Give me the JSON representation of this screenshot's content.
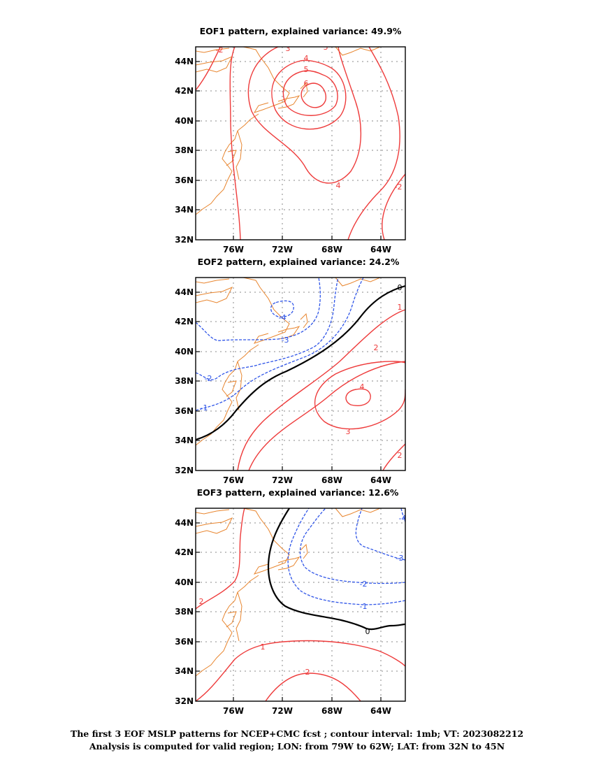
{
  "panels": [
    {
      "title": "EOF1 pattern, explained variance: 49.9%",
      "contour_labels": [
        "-2",
        "3",
        "3",
        "4",
        "5",
        "6",
        "4",
        "-2"
      ]
    },
    {
      "title": "EOF2 pattern, explained variance: 24.2%",
      "contour_labels": [
        "0",
        "1",
        "2",
        "3",
        "4",
        "-4",
        "-3",
        "-2",
        "-1",
        "2"
      ]
    },
    {
      "title": "EOF3 pattern, explained variance: 12.6%",
      "contour_labels": [
        "2",
        "1",
        "2",
        "0",
        "-1",
        "-2",
        "-3",
        "-4"
      ]
    }
  ],
  "axes": {
    "lon_ticks": [
      "76W",
      "72W",
      "68W",
      "64W"
    ],
    "lat_ticks": [
      "44N",
      "42N",
      "40N",
      "38N",
      "36N",
      "34N",
      "32N"
    ]
  },
  "colors": {
    "positive": "#ee3b3b",
    "negative": "#2f55e8",
    "zero": "#000000",
    "coast": "#e8852e",
    "grid": "#888888"
  },
  "caption": {
    "line1": "The first 3 EOF MSLP patterns for NCEP+CMC fcst ; contour interval: 1mb; VT: 2023082212",
    "line2": "Analysis is computed for valid region; LON: from 79W to 62W; LAT: from 32N to 45N"
  }
}
